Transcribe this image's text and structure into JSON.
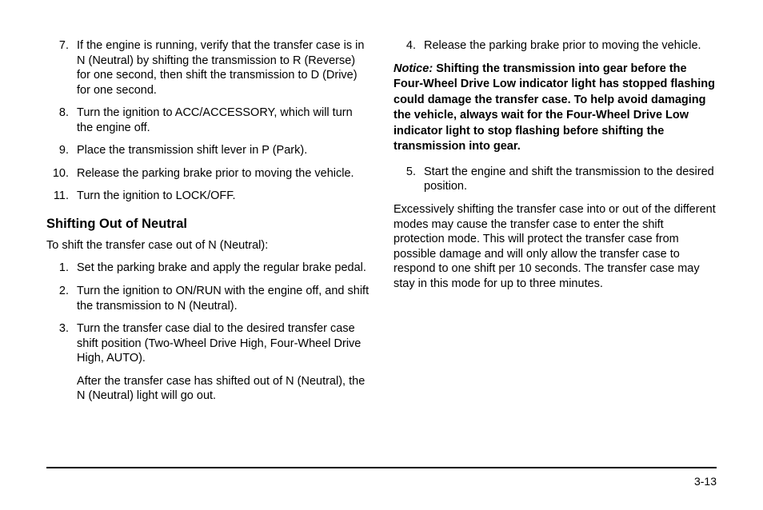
{
  "left": {
    "list_a": [
      {
        "n": "7.",
        "t": "If the engine is running, verify that the transfer case is in N (Neutral) by shifting the transmission to R (Reverse) for one second, then shift the transmission to D (Drive) for one second."
      },
      {
        "n": "8.",
        "t": "Turn the ignition to ACC/ACCESSORY, which will turn the engine off."
      },
      {
        "n": "9.",
        "t": "Place the transmission shift lever in P (Park)."
      },
      {
        "n": "10.",
        "t": "Release the parking brake prior to moving the vehicle."
      },
      {
        "n": "11.",
        "t": "Turn the ignition to LOCK/OFF."
      }
    ],
    "subhead": "Shifting Out of Neutral",
    "intro": "To shift the transfer case out of N (Neutral):",
    "list_b": [
      {
        "n": "1.",
        "t": "Set the parking brake and apply the regular brake pedal."
      },
      {
        "n": "2.",
        "t": "Turn the ignition to ON/RUN with the engine off, and shift the transmission to N (Neutral)."
      },
      {
        "n": "3.",
        "t": "Turn the transfer case dial to the desired transfer case shift position (Two-Wheel Drive High, Four-Wheel Drive High, AUTO).",
        "after": "After the transfer case has shifted out of N (Neutral), the N (Neutral) light will go out."
      }
    ]
  },
  "right": {
    "list_c": [
      {
        "n": "4.",
        "t": "Release the parking brake prior to moving the vehicle."
      }
    ],
    "notice_label": "Notice:",
    "notice_body": "Shifting the transmission into gear before the Four-Wheel Drive Low indicator light has stopped flashing could damage the transfer case. To help avoid damaging the vehicle, always wait for the Four-Wheel Drive Low indicator light to stop flashing before shifting the transmission into gear.",
    "list_d": [
      {
        "n": "5.",
        "t": "Start the engine and shift the transmission to the desired position."
      }
    ],
    "para": "Excessively shifting the transfer case into or out of the different modes may cause the transfer case to enter the shift protection mode. This will protect the transfer case from possible damage and will only allow the transfer case to respond to one shift per 10 seconds. The transfer case may stay in this mode for up to three minutes."
  },
  "page_number": "3-13"
}
